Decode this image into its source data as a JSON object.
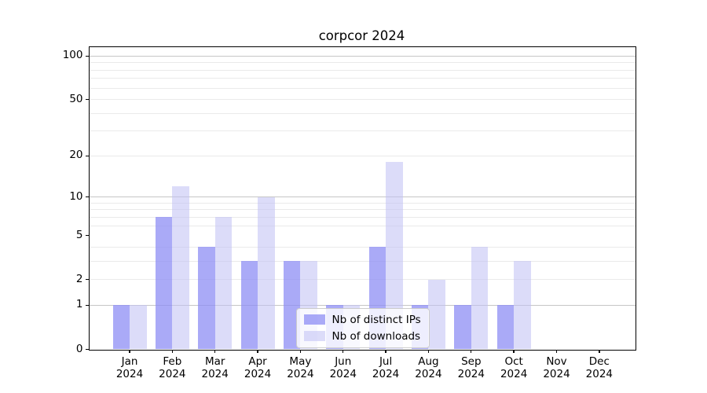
{
  "chart_data": {
    "type": "bar",
    "title": "corpcor 2024",
    "months": [
      "Jan",
      "Feb",
      "Mar",
      "Apr",
      "May",
      "Jun",
      "Jul",
      "Aug",
      "Sep",
      "Oct",
      "Nov",
      "Dec"
    ],
    "year": "2024",
    "series": [
      {
        "name": "Nb of distinct IPs",
        "color": "rgba(141,141,244,0.75)",
        "color_hex_on_white": "#aaaaf6",
        "values": [
          1,
          7,
          4,
          3,
          3,
          1,
          4,
          1,
          1,
          1,
          0,
          0
        ]
      },
      {
        "name": "Nb of downloads",
        "color": "rgba(192,192,244,0.56)",
        "color_hex_on_white": "#dcdcf9",
        "values": [
          1,
          12,
          7,
          10,
          3,
          1,
          18,
          2,
          4,
          3,
          0,
          0
        ]
      }
    ],
    "yscale": "log1p",
    "ylim": [
      0,
      116
    ],
    "yticks": [
      0,
      1,
      2,
      5,
      10,
      20,
      50,
      100
    ],
    "major_gridlines": [
      1,
      10,
      100
    ],
    "minor_gridlines": [
      2,
      3,
      4,
      6,
      7,
      8,
      9,
      20,
      30,
      40,
      50,
      60,
      70,
      80,
      90
    ],
    "grid": true,
    "legend_position": "lower-center-inside",
    "grid_major_color": "#c6c6c6",
    "grid_minor_color": "#eaeaea"
  }
}
